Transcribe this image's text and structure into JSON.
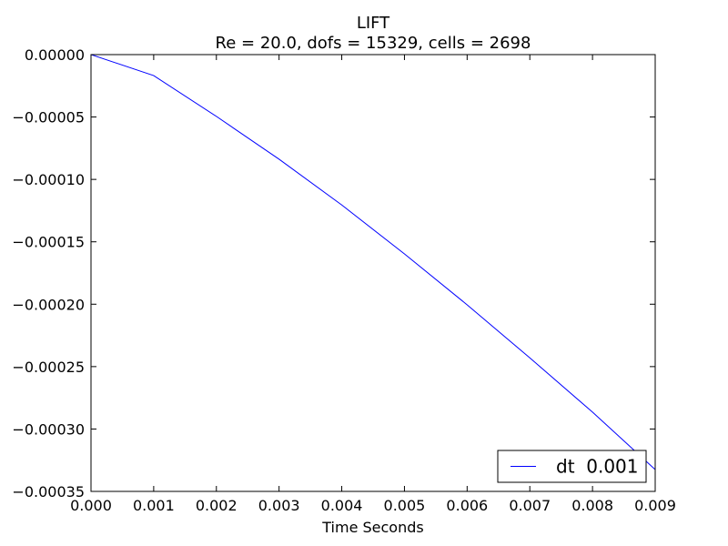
{
  "chart_data": {
    "type": "line",
    "title": "LIFT",
    "subtitle": "Re = 20.0, dofs = 15329, cells = 2698",
    "xlabel": "Time Seconds",
    "ylabel": "",
    "xlim": [
      0.0,
      0.009
    ],
    "ylim": [
      -0.00035,
      0.0
    ],
    "xticks": [
      "0.000",
      "0.001",
      "0.002",
      "0.003",
      "0.004",
      "0.005",
      "0.006",
      "0.007",
      "0.008",
      "0.009"
    ],
    "yticks": [
      "0.00000",
      "−0.00005",
      "−0.00010",
      "−0.00015",
      "−0.00020",
      "−0.00025",
      "−0.00030",
      "−0.00035"
    ],
    "grid": false,
    "legend_position": "lower-right",
    "series": [
      {
        "name": "dt  0.001",
        "color": "#0000ff",
        "x": [
          0.0,
          0.001,
          0.002,
          0.003,
          0.004,
          0.005,
          0.006,
          0.007,
          0.008,
          0.009
        ],
        "y": [
          0.0,
          -1.68e-05,
          -4.95e-05,
          -8.38e-05,
          -0.0001205,
          -0.0001597,
          -0.0002005,
          -0.000243,
          -0.0002865,
          -0.0003325
        ]
      }
    ]
  }
}
